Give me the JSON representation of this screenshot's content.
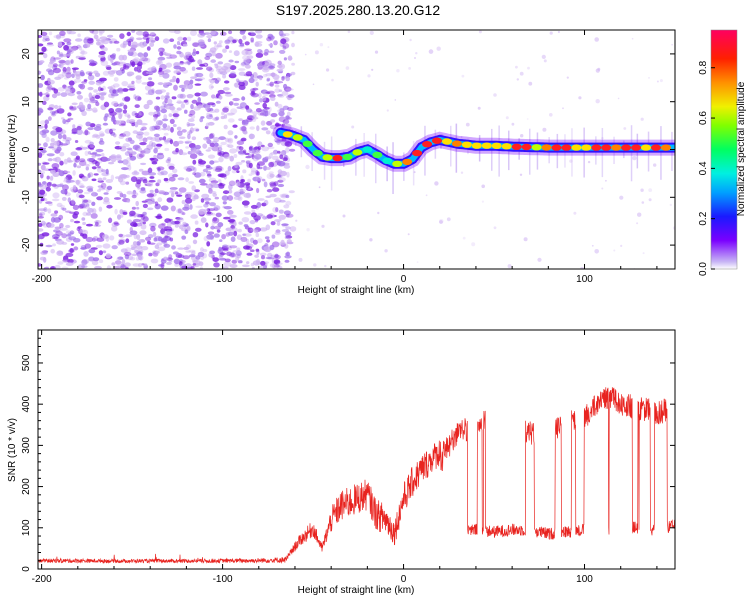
{
  "title": "S197.2025.280.13.20.G12",
  "colors": {
    "snr_line": "#e8231f",
    "speckle_dark": "#7a1fe0",
    "speckle_light": "#cdb0f2",
    "axis": "#000000"
  },
  "chart_data": [
    {
      "id": "spectrogram",
      "type": "heatmap",
      "xlabel": "Height of straight line (km)",
      "ylabel": "Frequency (Hz)",
      "xlim": [
        -202,
        150
      ],
      "ylim": [
        -25,
        25
      ],
      "xticks": [
        -200,
        -100,
        0,
        100
      ],
      "yticks": [
        -20,
        -10,
        0,
        10,
        20
      ],
      "noise_region_x": [
        -202,
        -65
      ],
      "ridge": {
        "x": [
          -68,
          -62,
          -55,
          -50,
          -45,
          -40,
          -35,
          -30,
          -25,
          -20,
          -15,
          -10,
          -5,
          0,
          5,
          10,
          15,
          20,
          30,
          40,
          50,
          60,
          70,
          80,
          90,
          100,
          110,
          120,
          130,
          140,
          150
        ],
        "freq": [
          3.5,
          3,
          2,
          0,
          -1.5,
          -1.8,
          -1.8,
          -1.5,
          -0.5,
          0,
          -1,
          -2.2,
          -3,
          -3,
          -2,
          0.5,
          1.5,
          2,
          1.2,
          0.8,
          0.8,
          0.6,
          0.5,
          0.4,
          0.4,
          0.4,
          0.4,
          0.4,
          0.4,
          0.4,
          0.4
        ]
      },
      "colorbar": {
        "label": "Normalized spectral amplitude",
        "min": 0,
        "max": 0.95,
        "ticks": [
          0.0,
          0.2,
          0.4,
          0.6,
          0.8
        ]
      }
    },
    {
      "id": "snr",
      "type": "line",
      "xlabel": "Height of straight line (km)",
      "ylabel": "SNR (10 * v/v)",
      "xlim": [
        -202,
        150
      ],
      "ylim": [
        0,
        580
      ],
      "xticks": [
        -200,
        -100,
        0,
        100
      ],
      "yticks": [
        0,
        100,
        200,
        300,
        400,
        500
      ],
      "series": [
        {
          "name": "SNR",
          "x": [
            -202,
            -180,
            -160,
            -140,
            -120,
            -100,
            -80,
            -65,
            -58,
            -50,
            -45,
            -40,
            -35,
            -30,
            -25,
            -20,
            -15,
            -10,
            -5,
            0,
            5,
            10,
            15,
            20,
            25,
            30,
            40,
            50,
            60,
            70,
            80,
            90,
            100,
            110,
            115,
            120,
            130,
            140,
            150
          ],
          "upper": [
            25,
            25,
            24,
            24,
            24,
            25,
            26,
            30,
            80,
            120,
            60,
            150,
            190,
            200,
            210,
            220,
            170,
            160,
            120,
            210,
            250,
            280,
            300,
            320,
            330,
            360,
            380,
            390,
            380,
            360,
            360,
            380,
            400,
            440,
            450,
            430,
            420,
            410,
            420
          ],
          "lower": [
            15,
            15,
            15,
            15,
            15,
            15,
            15,
            15,
            40,
            60,
            30,
            60,
            80,
            90,
            100,
            110,
            60,
            50,
            30,
            100,
            140,
            170,
            200,
            220,
            70,
            75,
            80,
            75,
            80,
            80,
            70,
            75,
            80,
            85,
            80,
            90,
            85,
            80,
            90
          ]
        }
      ]
    }
  ]
}
